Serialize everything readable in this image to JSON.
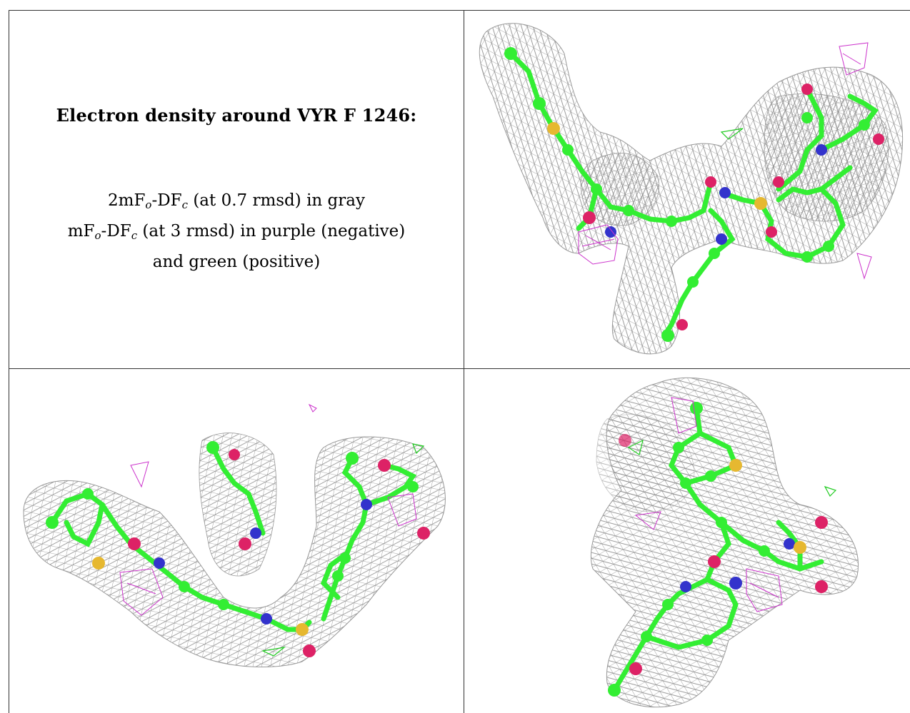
{
  "caption": {
    "title": "Electron density around VYR F 1246:",
    "line1": {
      "prefix": "2mF",
      "sub1": "o",
      "mid": "-DF",
      "sub2": "c",
      "suffix": " (at 0.7 rmsd) in gray"
    },
    "line2": {
      "prefix": "mF",
      "sub1": "o",
      "mid": "-DF",
      "sub2": "c",
      "suffix": " (at 3 rmsd) in purple (negative)"
    },
    "line3": "and green (positive)"
  },
  "colors": {
    "mesh": "#8a8a8a",
    "carbon": "#33ee33",
    "nitrogen": "#3333cc",
    "oxygen": "#dd2266",
    "sulfur": "#e6b830",
    "negative_density": "#cc33cc",
    "positive_density": "#22cc22"
  },
  "views": [
    {
      "name": "view-1",
      "description_visible": false
    },
    {
      "name": "view-2",
      "description_visible": false
    },
    {
      "name": "view-3",
      "description_visible": false
    }
  ]
}
